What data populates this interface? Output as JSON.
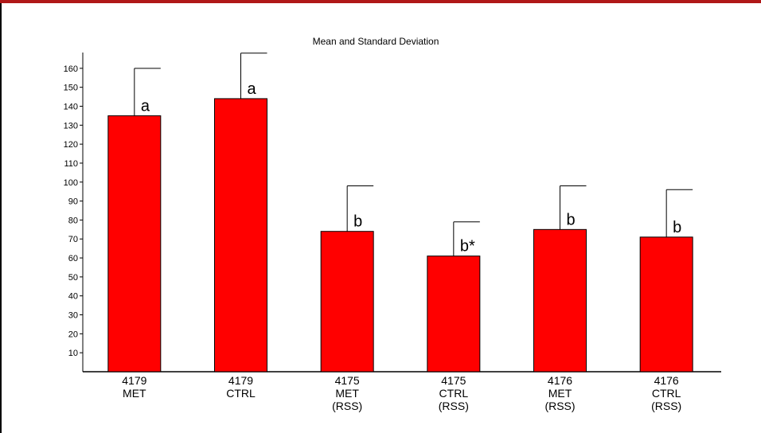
{
  "chart_data": {
    "type": "bar",
    "title": "Mean and Standard Deviation",
    "xlabel": "",
    "ylabel": "",
    "ylim": [
      0,
      170
    ],
    "yticks": [
      10,
      20,
      30,
      40,
      50,
      60,
      70,
      80,
      90,
      100,
      110,
      120,
      130,
      140,
      150,
      160
    ],
    "categories": [
      [
        "4179",
        "MET"
      ],
      [
        "4179",
        "CTRL"
      ],
      [
        "4175",
        "MET",
        "(RSS)"
      ],
      [
        "4175",
        "CTRL",
        "(RSS)"
      ],
      [
        "4176",
        "MET",
        "(RSS)"
      ],
      [
        "4176",
        "CTRL",
        "(RSS)"
      ]
    ],
    "values": [
      135,
      144,
      74,
      61,
      75,
      71
    ],
    "sd": [
      25,
      24,
      24,
      18,
      23,
      25
    ],
    "annotations": [
      "a",
      "a",
      "b",
      "b*",
      "b",
      "b"
    ],
    "grid": false,
    "colors": {
      "bar": "#ff0000",
      "bar_stroke": "#000000",
      "top_rule": "#b01818"
    }
  }
}
